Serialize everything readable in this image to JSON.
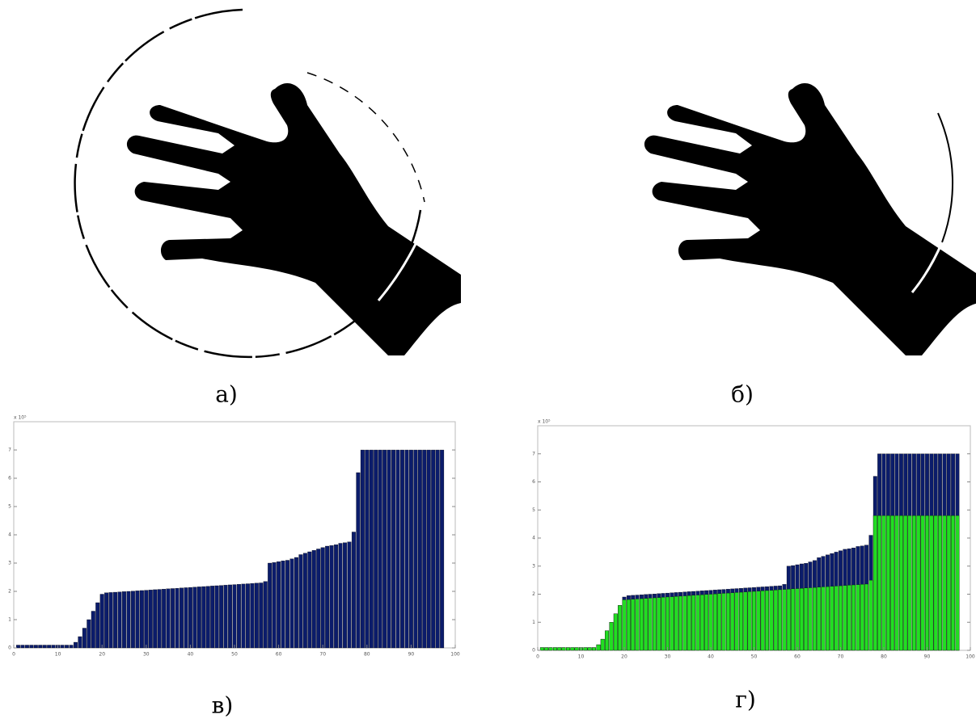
{
  "figure": {
    "panels": [
      {
        "caption": "а)"
      },
      {
        "caption": "б)"
      }
    ]
  },
  "chart_data": [
    {
      "type": "bar",
      "caption": "в)",
      "y_scale_label": "x 10⁵",
      "x": [
        1,
        2,
        3,
        4,
        5,
        6,
        7,
        8,
        9,
        10,
        11,
        12,
        13,
        14,
        15,
        16,
        17,
        18,
        19,
        20,
        21,
        22,
        23,
        24,
        25,
        26,
        27,
        28,
        29,
        30,
        31,
        32,
        33,
        34,
        35,
        36,
        37,
        38,
        39,
        40,
        41,
        42,
        43,
        44,
        45,
        46,
        47,
        48,
        49,
        50,
        51,
        52,
        53,
        54,
        55,
        56,
        57,
        58,
        59,
        60,
        61,
        62,
        63,
        64,
        65,
        66,
        67,
        68,
        69,
        70,
        71,
        72,
        73,
        74,
        75,
        76,
        77,
        78,
        79,
        80,
        81,
        82,
        83,
        84,
        85,
        86,
        87,
        88,
        89,
        90,
        91,
        92,
        93,
        94,
        95,
        96,
        97
      ],
      "series": [
        {
          "color": "#0b1c6b",
          "values": [
            0.1,
            0.1,
            0.1,
            0.1,
            0.1,
            0.1,
            0.1,
            0.1,
            0.1,
            0.1,
            0.1,
            0.1,
            0.1,
            0.2,
            0.4,
            0.7,
            1.0,
            1.3,
            1.6,
            1.9,
            1.95,
            1.96,
            1.97,
            1.98,
            1.99,
            2.0,
            2.01,
            2.02,
            2.03,
            2.04,
            2.05,
            2.06,
            2.07,
            2.08,
            2.09,
            2.1,
            2.11,
            2.12,
            2.13,
            2.14,
            2.15,
            2.16,
            2.17,
            2.18,
            2.19,
            2.2,
            2.21,
            2.22,
            2.23,
            2.24,
            2.25,
            2.26,
            2.27,
            2.28,
            2.29,
            2.3,
            2.35,
            3.0,
            3.02,
            3.05,
            3.08,
            3.1,
            3.15,
            3.2,
            3.3,
            3.35,
            3.4,
            3.45,
            3.5,
            3.55,
            3.6,
            3.62,
            3.65,
            3.7,
            3.72,
            3.75,
            4.1,
            6.2,
            7.0,
            7.0,
            7.0,
            7.0,
            7.0,
            7.0,
            7.0,
            7.0,
            7.0,
            7.0,
            7.0,
            7.0,
            7.0,
            7.0,
            7.0,
            7.0,
            7.0,
            7.0,
            7.0
          ]
        }
      ],
      "xlim": [
        0,
        100
      ],
      "ylim": [
        0,
        8
      ],
      "xticks": [
        0,
        10,
        20,
        30,
        40,
        50,
        60,
        70,
        80,
        90,
        100
      ],
      "yticks": [
        0,
        1,
        2,
        3,
        4,
        5,
        6,
        7
      ]
    },
    {
      "type": "bar",
      "caption": "г)",
      "y_scale_label": "x 10⁵",
      "x": [
        1,
        2,
        3,
        4,
        5,
        6,
        7,
        8,
        9,
        10,
        11,
        12,
        13,
        14,
        15,
        16,
        17,
        18,
        19,
        20,
        21,
        22,
        23,
        24,
        25,
        26,
        27,
        28,
        29,
        30,
        31,
        32,
        33,
        34,
        35,
        36,
        37,
        38,
        39,
        40,
        41,
        42,
        43,
        44,
        45,
        46,
        47,
        48,
        49,
        50,
        51,
        52,
        53,
        54,
        55,
        56,
        57,
        58,
        59,
        60,
        61,
        62,
        63,
        64,
        65,
        66,
        67,
        68,
        69,
        70,
        71,
        72,
        73,
        74,
        75,
        76,
        77,
        78,
        79,
        80,
        81,
        82,
        83,
        84,
        85,
        86,
        87,
        88,
        89,
        90,
        91,
        92,
        93,
        94,
        95,
        96,
        97
      ],
      "series": [
        {
          "color": "#0b1c6b",
          "values": [
            0.1,
            0.1,
            0.1,
            0.1,
            0.1,
            0.1,
            0.1,
            0.1,
            0.1,
            0.1,
            0.1,
            0.1,
            0.1,
            0.2,
            0.4,
            0.7,
            1.0,
            1.3,
            1.6,
            1.9,
            1.95,
            1.96,
            1.97,
            1.98,
            1.99,
            2.0,
            2.01,
            2.02,
            2.03,
            2.04,
            2.05,
            2.06,
            2.07,
            2.08,
            2.09,
            2.1,
            2.11,
            2.12,
            2.13,
            2.14,
            2.15,
            2.16,
            2.17,
            2.18,
            2.19,
            2.2,
            2.21,
            2.22,
            2.23,
            2.24,
            2.25,
            2.26,
            2.27,
            2.28,
            2.29,
            2.3,
            2.35,
            3.0,
            3.02,
            3.05,
            3.08,
            3.1,
            3.15,
            3.2,
            3.3,
            3.35,
            3.4,
            3.45,
            3.5,
            3.55,
            3.6,
            3.62,
            3.65,
            3.7,
            3.72,
            3.75,
            4.1,
            6.2,
            7.0,
            7.0,
            7.0,
            7.0,
            7.0,
            7.0,
            7.0,
            7.0,
            7.0,
            7.0,
            7.0,
            7.0,
            7.0,
            7.0,
            7.0,
            7.0,
            7.0,
            7.0,
            7.0
          ]
        },
        {
          "color": "#22dd22",
          "values": [
            0.1,
            0.1,
            0.1,
            0.1,
            0.1,
            0.1,
            0.1,
            0.1,
            0.1,
            0.1,
            0.1,
            0.1,
            0.1,
            0.2,
            0.4,
            0.7,
            1.0,
            1.3,
            1.6,
            1.8,
            1.81,
            1.82,
            1.83,
            1.84,
            1.85,
            1.86,
            1.87,
            1.88,
            1.89,
            1.9,
            1.91,
            1.92,
            1.93,
            1.94,
            1.95,
            1.96,
            1.97,
            1.98,
            1.99,
            2.0,
            2.01,
            2.02,
            2.03,
            2.04,
            2.05,
            2.06,
            2.07,
            2.08,
            2.09,
            2.1,
            2.11,
            2.12,
            2.13,
            2.14,
            2.15,
            2.16,
            2.17,
            2.18,
            2.19,
            2.2,
            2.21,
            2.22,
            2.23,
            2.24,
            2.25,
            2.26,
            2.27,
            2.28,
            2.29,
            2.3,
            2.31,
            2.32,
            2.33,
            2.34,
            2.35,
            2.36,
            2.5,
            4.8,
            4.8,
            4.8,
            4.8,
            4.8,
            4.8,
            4.8,
            4.8,
            4.8,
            4.8,
            4.8,
            4.8,
            4.8,
            4.8,
            4.8,
            4.8,
            4.8,
            4.8,
            4.8,
            4.8
          ]
        }
      ],
      "xlim": [
        0,
        100
      ],
      "ylim": [
        0,
        8
      ],
      "xticks": [
        0,
        10,
        20,
        30,
        40,
        50,
        60,
        70,
        80,
        90,
        100
      ],
      "yticks": [
        0,
        1,
        2,
        3,
        4,
        5,
        6,
        7
      ]
    }
  ]
}
